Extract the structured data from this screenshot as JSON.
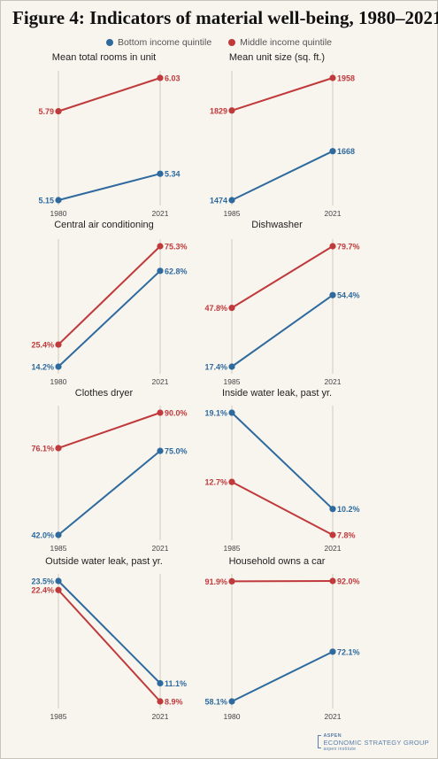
{
  "figure": {
    "title": "Figure 4: Indicators of material well-being, 1980–2021",
    "legend": [
      {
        "label": "Bottom income quintile",
        "color": "#2e6a9e"
      },
      {
        "label": "Middle income quintile",
        "color": "#c0393b"
      }
    ],
    "footer": {
      "brand_top": "ASPEN",
      "brand_main": "ECONOMIC STRATEGY GROUP",
      "brand_sub": "aspen institute"
    }
  },
  "chart_data": [
    {
      "type": "line",
      "title": "Mean total rooms in unit",
      "x": [
        "1980",
        "2021"
      ],
      "series": [
        {
          "name": "Bottom income quintile",
          "values": [
            5.15,
            5.34
          ],
          "labels": [
            "5.15",
            "5.34"
          ]
        },
        {
          "name": "Middle income quintile",
          "values": [
            5.79,
            6.03
          ],
          "labels": [
            "5.79",
            "6.03"
          ]
        }
      ]
    },
    {
      "type": "line",
      "title": "Mean unit size (sq. ft.)",
      "x": [
        "1985",
        "2021"
      ],
      "series": [
        {
          "name": "Bottom income quintile",
          "values": [
            1474,
            1668
          ],
          "labels": [
            "1474",
            "1668"
          ]
        },
        {
          "name": "Middle income quintile",
          "values": [
            1829,
            1958
          ],
          "labels": [
            "1829",
            "1958"
          ]
        }
      ]
    },
    {
      "type": "line",
      "title": "Central air conditioning",
      "x": [
        "1980",
        "2021"
      ],
      "series": [
        {
          "name": "Bottom income quintile",
          "values": [
            14.2,
            62.8
          ],
          "labels": [
            "14.2%",
            "62.8%"
          ]
        },
        {
          "name": "Middle income quintile",
          "values": [
            25.4,
            75.3
          ],
          "labels": [
            "25.4%",
            "75.3%"
          ]
        }
      ]
    },
    {
      "type": "line",
      "title": "Dishwasher",
      "x": [
        "1985",
        "2021"
      ],
      "series": [
        {
          "name": "Bottom income quintile",
          "values": [
            17.4,
            54.4
          ],
          "labels": [
            "17.4%",
            "54.4%"
          ]
        },
        {
          "name": "Middle income quintile",
          "values": [
            47.8,
            79.7
          ],
          "labels": [
            "47.8%",
            "79.7%"
          ]
        }
      ]
    },
    {
      "type": "line",
      "title": "Clothes dryer",
      "x": [
        "1985",
        "2021"
      ],
      "series": [
        {
          "name": "Bottom income quintile",
          "values": [
            42.0,
            75.0
          ],
          "labels": [
            "42.0%",
            "75.0%"
          ]
        },
        {
          "name": "Middle income quintile",
          "values": [
            76.1,
            90.0
          ],
          "labels": [
            "76.1%",
            "90.0%"
          ]
        }
      ]
    },
    {
      "type": "line",
      "title": "Inside water leak, past yr.",
      "x": [
        "1985",
        "2021"
      ],
      "series": [
        {
          "name": "Bottom income quintile",
          "values": [
            19.1,
            10.2
          ],
          "labels": [
            "19.1%",
            "10.2%"
          ]
        },
        {
          "name": "Middle income quintile",
          "values": [
            12.7,
            7.8
          ],
          "labels": [
            "12.7%",
            "7.8%"
          ]
        }
      ]
    },
    {
      "type": "line",
      "title": "Outside water leak, past yr.",
      "x": [
        "1985",
        "2021"
      ],
      "series": [
        {
          "name": "Bottom income quintile",
          "values": [
            23.5,
            11.1
          ],
          "labels": [
            "23.5%",
            "11.1%"
          ]
        },
        {
          "name": "Middle income quintile",
          "values": [
            22.4,
            8.9
          ],
          "labels": [
            "22.4%",
            "8.9%"
          ]
        }
      ]
    },
    {
      "type": "line",
      "title": "Household owns a car",
      "x": [
        "1980",
        "2021"
      ],
      "series": [
        {
          "name": "Bottom income quintile",
          "values": [
            58.1,
            72.1
          ],
          "labels": [
            "58.1%",
            "72.1%"
          ]
        },
        {
          "name": "Middle income quintile",
          "values": [
            91.9,
            92.0
          ],
          "labels": [
            "91.9%",
            "92.0%"
          ]
        }
      ]
    }
  ]
}
